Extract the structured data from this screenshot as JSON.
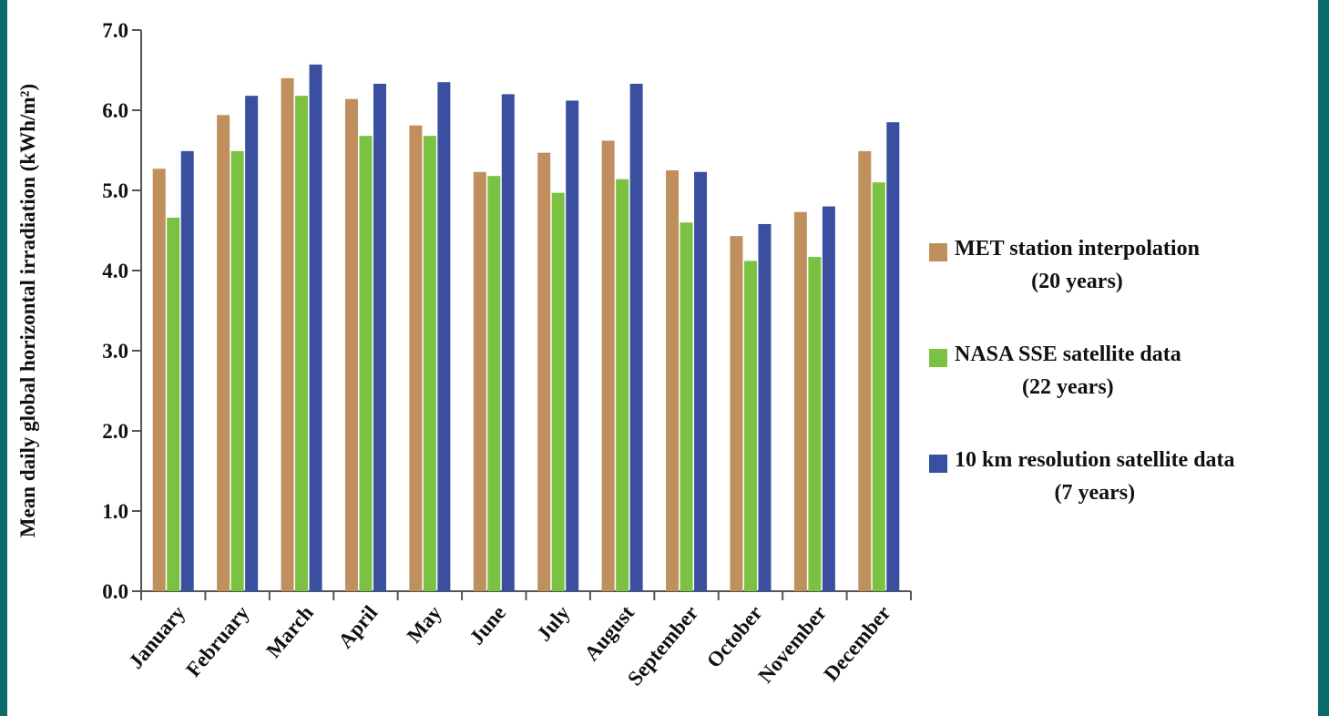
{
  "chart_data": {
    "type": "bar",
    "y_label": "Mean daily global horizontal irradiation (kWh/m²)",
    "categories": [
      "January",
      "February",
      "March",
      "April",
      "May",
      "June",
      "July",
      "August",
      "September",
      "October",
      "November",
      "December"
    ],
    "series": [
      {
        "name": "MET station interpolation\n(20 years)",
        "color": "#c08f5e",
        "values": [
          5.27,
          5.94,
          6.4,
          6.14,
          5.81,
          5.23,
          5.47,
          5.62,
          5.25,
          4.43,
          4.73,
          5.49
        ]
      },
      {
        "name": "NASA SSE satellite data\n(22 years)",
        "color": "#7cc242",
        "values": [
          4.66,
          5.49,
          6.18,
          5.68,
          5.68,
          5.18,
          4.97,
          5.14,
          4.6,
          4.12,
          4.17,
          5.1
        ]
      },
      {
        "name": "10 km resolution satellite data\n(7 years)",
        "color": "#3a4fa0",
        "values": [
          5.49,
          6.18,
          6.57,
          6.33,
          6.35,
          6.2,
          6.12,
          6.33,
          5.23,
          4.58,
          4.8,
          5.85
        ]
      }
    ],
    "ylim": [
      0,
      7
    ],
    "yticks": [
      {
        "value": 0,
        "label": "0.0"
      },
      {
        "value": 1,
        "label": "1.0"
      },
      {
        "value": 2,
        "label": "2.0"
      },
      {
        "value": 3,
        "label": "3.0"
      },
      {
        "value": 4,
        "label": "4.0"
      },
      {
        "value": 5,
        "label": "5.0"
      },
      {
        "value": 6,
        "label": "6.0"
      },
      {
        "value": 7,
        "label": "7.0"
      }
    ],
    "grid": false,
    "legend": "right"
  }
}
